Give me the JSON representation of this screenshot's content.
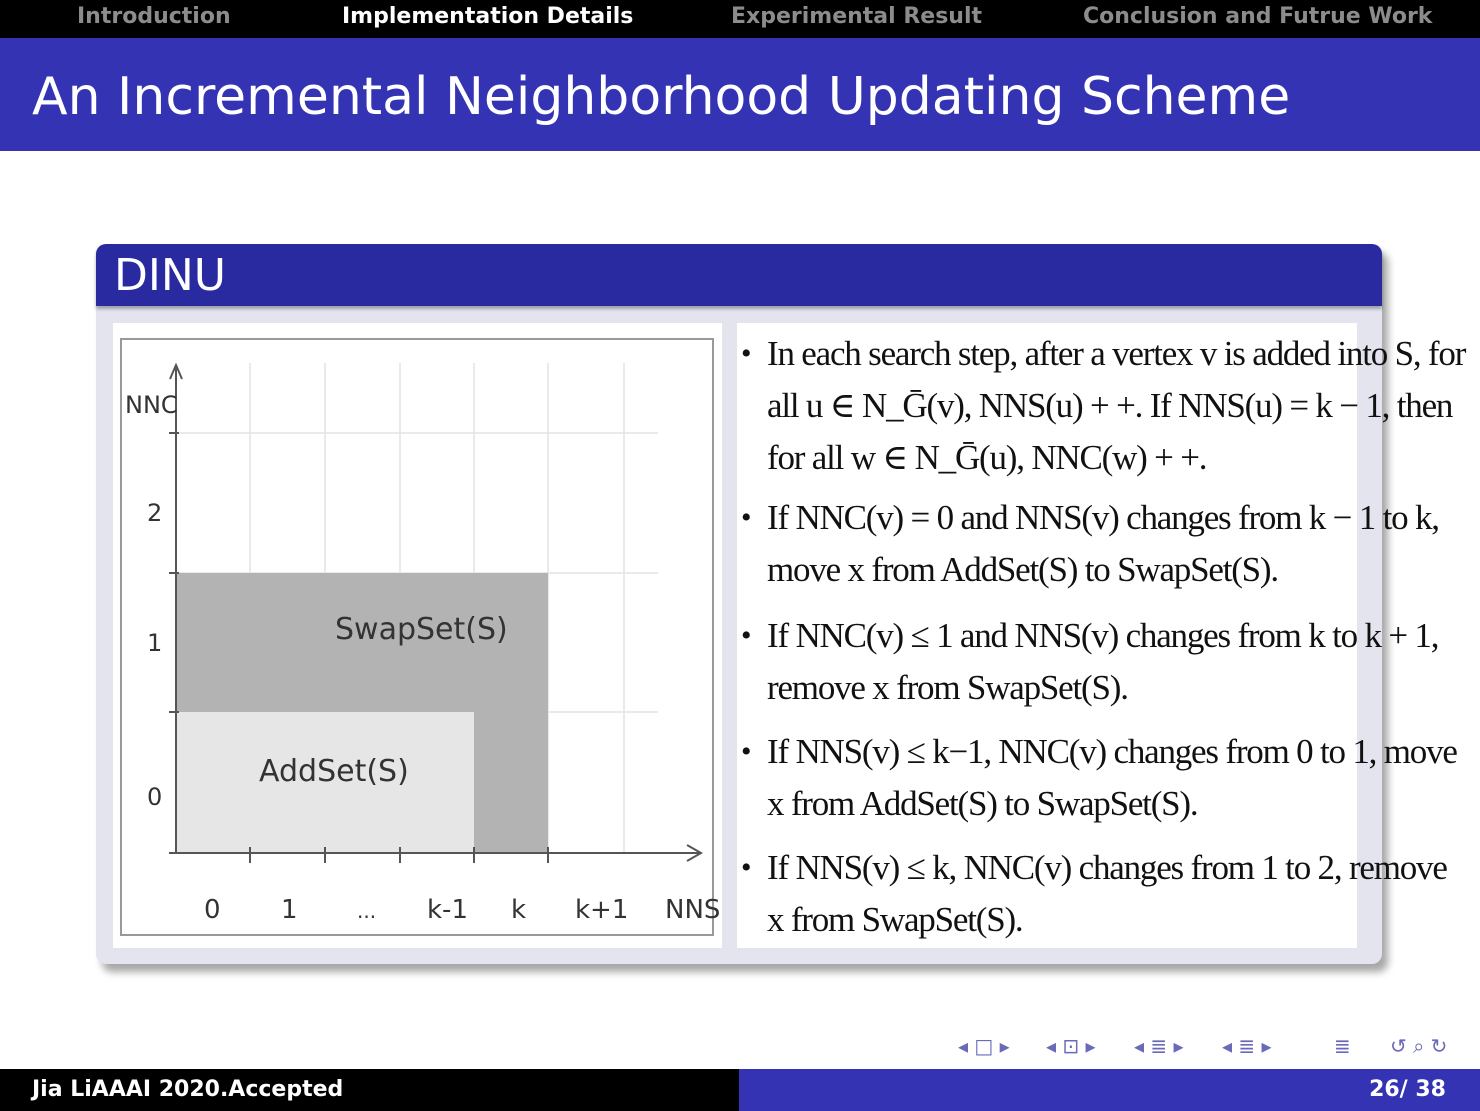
{
  "nav": {
    "items": [
      {
        "label": "Introduction",
        "active": false
      },
      {
        "label": "Implementation Details",
        "active": true
      },
      {
        "label": "Experimental Result",
        "active": false
      },
      {
        "label": "Conclusion and Futrue Work",
        "active": false
      }
    ]
  },
  "slide": {
    "title": "An Incremental Neighborhood Updating Scheme"
  },
  "block": {
    "title": "DINU",
    "figure": {
      "y_axis_label": "NNC",
      "x_axis_label": "NNS",
      "y_ticks": [
        "2",
        "1",
        "0"
      ],
      "x_ticks": [
        "0",
        "1",
        "...",
        "k-1",
        "k",
        "k+1"
      ],
      "regions": [
        {
          "label": "SwapSet(S)",
          "color": "#b3b3b3"
        },
        {
          "label": "AddSet(S)",
          "color": "#e6e6e6"
        }
      ]
    },
    "bullets": [
      {
        "lines": [
          "In each search step, after a vertex v is added into S, for",
          "all u ∈ N_Ḡ(v), NNS(u) + +. If NNS(u) = k − 1, then",
          "for all w ∈ N_Ḡ(u), NNC(w) + +."
        ]
      },
      {
        "lines": [
          "If NNC(v) = 0 and NNS(v) changes from k − 1 to k,",
          "move x from AddSet(S) to SwapSet(S)."
        ]
      },
      {
        "lines": [
          "If NNC(v) ≤ 1 and NNS(v) changes from k to k + 1,",
          "remove x from SwapSet(S)."
        ]
      },
      {
        "lines": [
          "If NNS(v) ≤ k−1, NNC(v) changes from 0 to 1, move",
          "x from AddSet(S) to SwapSet(S)."
        ]
      },
      {
        "lines": [
          "If NNS(v) ≤ k, NNC(v) changes from 1 to 2, remove",
          "x from SwapSet(S)."
        ]
      }
    ]
  },
  "beamer_nav": {
    "frame": "◂ □ ▸",
    "subsection": "◂ ⊡ ▸",
    "section": "◂ ≣ ▸",
    "section2": "◂ ≣ ▸",
    "align": "≣",
    "search": "↺ ⌕ ↻"
  },
  "footer": {
    "author": "Jia LiAAAI 2020.Accepted",
    "page": "26/ 38"
  },
  "colors": {
    "nav_bg": "#000000",
    "title_bg": "#3333b3",
    "block_head": "#2a2aa0",
    "block_body": "#e4e4ef",
    "swapset": "#b3b3b3",
    "addset": "#e6e6e6"
  }
}
